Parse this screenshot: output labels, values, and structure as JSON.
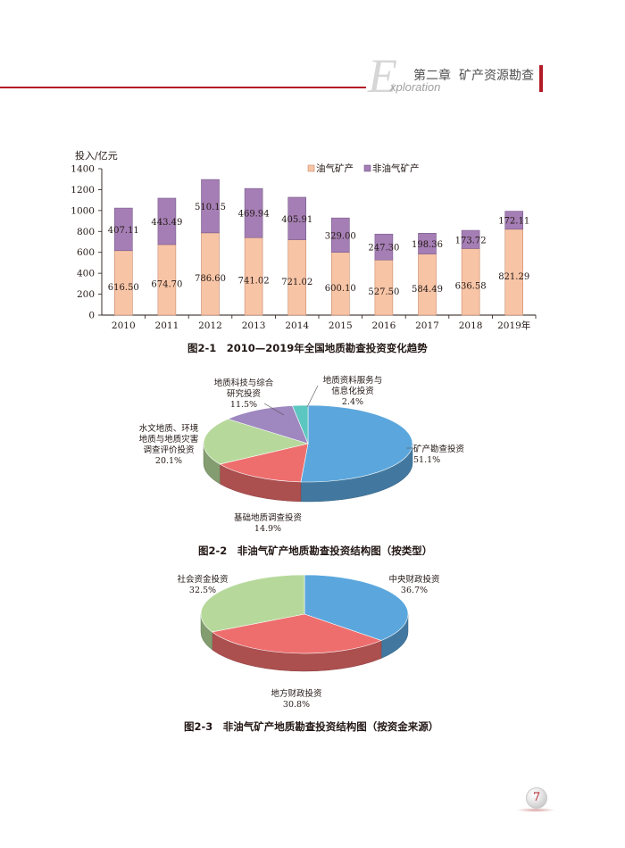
{
  "header": {
    "big_letter": "E",
    "sub": "xploration",
    "chapter": "第二章",
    "section": "矿产资源勘查"
  },
  "chart_data": [
    {
      "type": "bar",
      "stacked": true,
      "ylabel": "投入/亿元",
      "ylim": [
        0,
        1400
      ],
      "yticks": [
        0,
        200,
        400,
        600,
        800,
        1000,
        1200,
        1400
      ],
      "categories": [
        "2010",
        "2011",
        "2012",
        "2013",
        "2014",
        "2015",
        "2016",
        "2017",
        "2018",
        "2019年"
      ],
      "series": [
        {
          "name": "油气矿产",
          "color": "#f7c4a6",
          "values": [
            616.5,
            674.7,
            786.6,
            741.02,
            721.02,
            600.1,
            527.5,
            584.49,
            636.58,
            821.29
          ],
          "labels": [
            "616.50",
            "674.70",
            "786.60",
            "741.02",
            "721.02",
            "600.10",
            "527.50",
            "584.49",
            "636.58",
            "821.29"
          ]
        },
        {
          "name": "非油气矿产",
          "color": "#a47eb4",
          "values": [
            407.11,
            443.49,
            510.15,
            469.94,
            405.91,
            329.0,
            247.3,
            198.36,
            173.72,
            172.11
          ],
          "labels": [
            "407.11",
            "443.49",
            "510.15",
            "469.94",
            "405.91",
            "329.00",
            "247.30",
            "198.36",
            "173.72",
            "172.11"
          ]
        }
      ],
      "legend_position": "top-right",
      "caption": "图2-1　2010—2019年全国地质勘查投资变化趋势"
    },
    {
      "type": "pie",
      "caption": "图2-2　非油气矿产地质勘查投资结构图（按类型）",
      "slices": [
        {
          "label": "矿产勘查投资",
          "pct": "51.1%",
          "value": 51.1,
          "color": "#5ba7dd"
        },
        {
          "label": "基础地质调查投资",
          "pct": "14.9%",
          "value": 14.9,
          "color": "#ee6e6e"
        },
        {
          "label": "水文地质、环境地质与地质灾害调查评价投资",
          "pct": "20.1%",
          "value": 20.1,
          "color": "#b6d99b"
        },
        {
          "label": "地质科技与综合研究投资",
          "pct": "11.5%",
          "value": 11.5,
          "color": "#9f87bf"
        },
        {
          "label": "地质资料服务与信息化投资",
          "pct": "2.4%",
          "value": 2.4,
          "color": "#5cc6c0"
        }
      ]
    },
    {
      "type": "pie",
      "caption": "图2-3　非油气矿产地质勘查投资结构图（按资金来源）",
      "slices": [
        {
          "label": "中央财政投资",
          "pct": "36.7%",
          "value": 36.7,
          "color": "#5ba7dd"
        },
        {
          "label": "地方财政投资",
          "pct": "30.8%",
          "value": 30.8,
          "color": "#ee6e6e"
        },
        {
          "label": "社会资金投资",
          "pct": "32.5%",
          "value": 32.5,
          "color": "#b6d99b"
        }
      ]
    }
  ],
  "page_number": "7",
  "pie1_labels": {
    "l0a": "矿产勘查投资",
    "l1a": "基础地质调查投资",
    "l2a": "水文地质、环境",
    "l2b": "地质与地质灾害",
    "l2c": "调查评价投资",
    "l3a": "地质科技与综合",
    "l3b": "研究投资",
    "l4a": "地质资料服务与",
    "l4b": "信息化投资"
  }
}
